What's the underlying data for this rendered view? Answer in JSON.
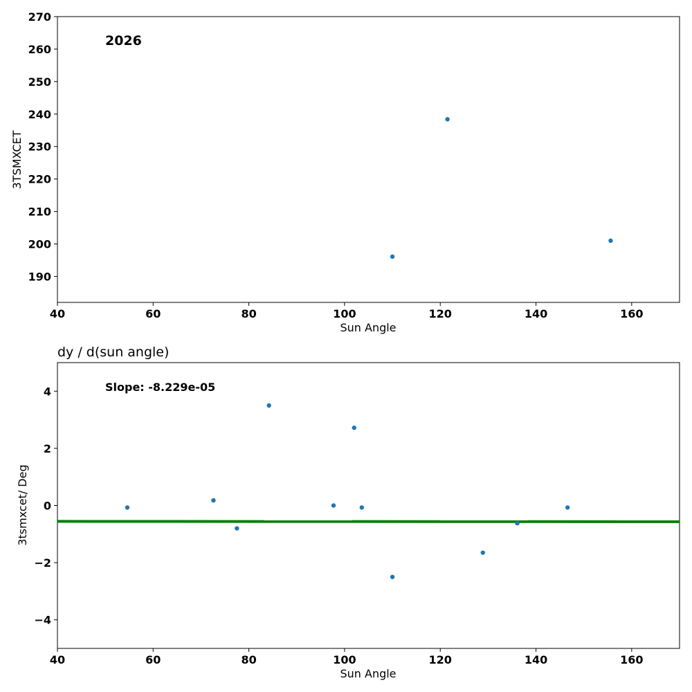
{
  "chart_data": [
    {
      "type": "scatter",
      "title": "",
      "annotation": "2026",
      "xlabel": "Sun Angle",
      "ylabel": "3TSMXCET",
      "xlim": [
        40,
        170
      ],
      "ylim": [
        182,
        270
      ],
      "xticks": [
        "40",
        "60",
        "80",
        "100",
        "120",
        "140",
        "160"
      ],
      "yticks": [
        "190",
        "200",
        "210",
        "220",
        "230",
        "240",
        "250",
        "260",
        "270"
      ],
      "marker_color": "#1f77b4",
      "points": [
        {
          "x": 110.0,
          "y": 196.1
        },
        {
          "x": 121.5,
          "y": 238.4
        },
        {
          "x": 155.6,
          "y": 201.0
        }
      ]
    },
    {
      "type": "scatter",
      "title": "dy / d(sun angle)",
      "annotation": "Slope: -8.229e-05",
      "xlabel": "Sun Angle",
      "ylabel": "3tsmxcet/ Deg",
      "xlim": [
        40,
        170
      ],
      "ylim": [
        -5,
        5
      ],
      "xticks": [
        "40",
        "60",
        "80",
        "100",
        "120",
        "140",
        "160"
      ],
      "yticks": [
        "−4",
        "−2",
        "0",
        "2",
        "4"
      ],
      "marker_color": "#1f77b4",
      "fit_color": "#008000",
      "fit_line": {
        "x": [
          40,
          170
        ],
        "y": [
          -0.555,
          -0.566
        ]
      },
      "points": [
        {
          "x": 54.6,
          "y": -0.07
        },
        {
          "x": 72.6,
          "y": 0.18
        },
        {
          "x": 77.5,
          "y": -0.8
        },
        {
          "x": 84.2,
          "y": 3.5
        },
        {
          "x": 97.7,
          "y": 0.0
        },
        {
          "x": 102.0,
          "y": 2.72
        },
        {
          "x": 103.6,
          "y": -0.07
        },
        {
          "x": 110.0,
          "y": -2.5
        },
        {
          "x": 128.9,
          "y": -1.65
        },
        {
          "x": 136.1,
          "y": -0.62
        },
        {
          "x": 146.6,
          "y": -0.07
        }
      ]
    }
  ]
}
